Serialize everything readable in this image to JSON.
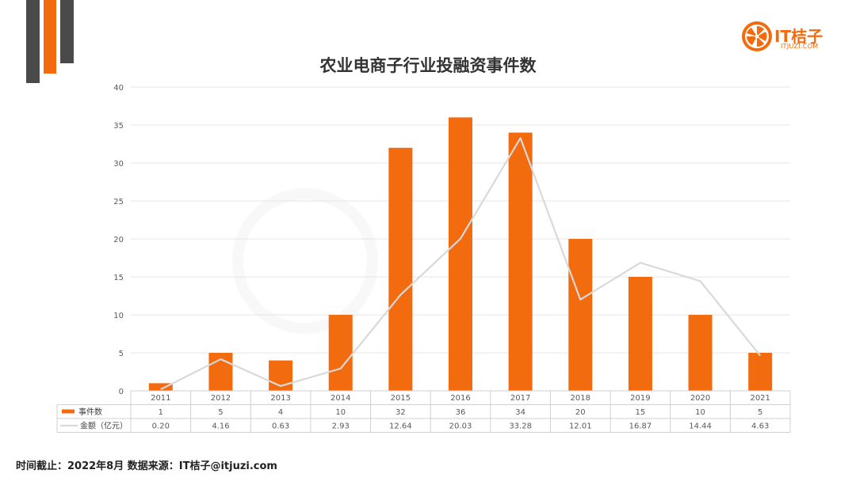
{
  "logo": {
    "text": "IT桔子",
    "subtext": "ITJUZI.COM"
  },
  "footer": {
    "text": "时间截止：2022年8月  数据来源：IT桔子@itjuzi.com"
  },
  "colors": {
    "bar": "#f26b0f",
    "line": "#d9d9d9",
    "accent": "#f26b0f",
    "dark": "#4a4a4a"
  },
  "chart_data": {
    "type": "bar",
    "title": "农业电商子行业投融资事件数",
    "categories": [
      "2011",
      "2012",
      "2013",
      "2014",
      "2015",
      "2016",
      "2017",
      "2018",
      "2019",
      "2020",
      "2021"
    ],
    "series": [
      {
        "name": "事件数",
        "kind": "bar",
        "values": [
          1,
          5,
          4,
          10,
          32,
          36,
          34,
          20,
          15,
          10,
          5
        ],
        "labels": [
          "1",
          "5",
          "4",
          "10",
          "32",
          "36",
          "34",
          "20",
          "15",
          "10",
          "5"
        ]
      },
      {
        "name": "金额（亿元）",
        "kind": "line",
        "values": [
          0.2,
          4.16,
          0.63,
          2.93,
          12.64,
          20.03,
          33.28,
          12.01,
          16.87,
          14.44,
          4.63
        ],
        "labels": [
          "0.20",
          "4.16",
          "0.63",
          "2.93",
          "12.64",
          "20.03",
          "33.28",
          "12.01",
          "16.87",
          "14.44",
          "4.63"
        ]
      }
    ],
    "ylim": [
      0,
      40
    ],
    "yticks": [
      0,
      5,
      10,
      15,
      20,
      25,
      30,
      35,
      40
    ],
    "grid": true,
    "legend": "data-table-below"
  }
}
